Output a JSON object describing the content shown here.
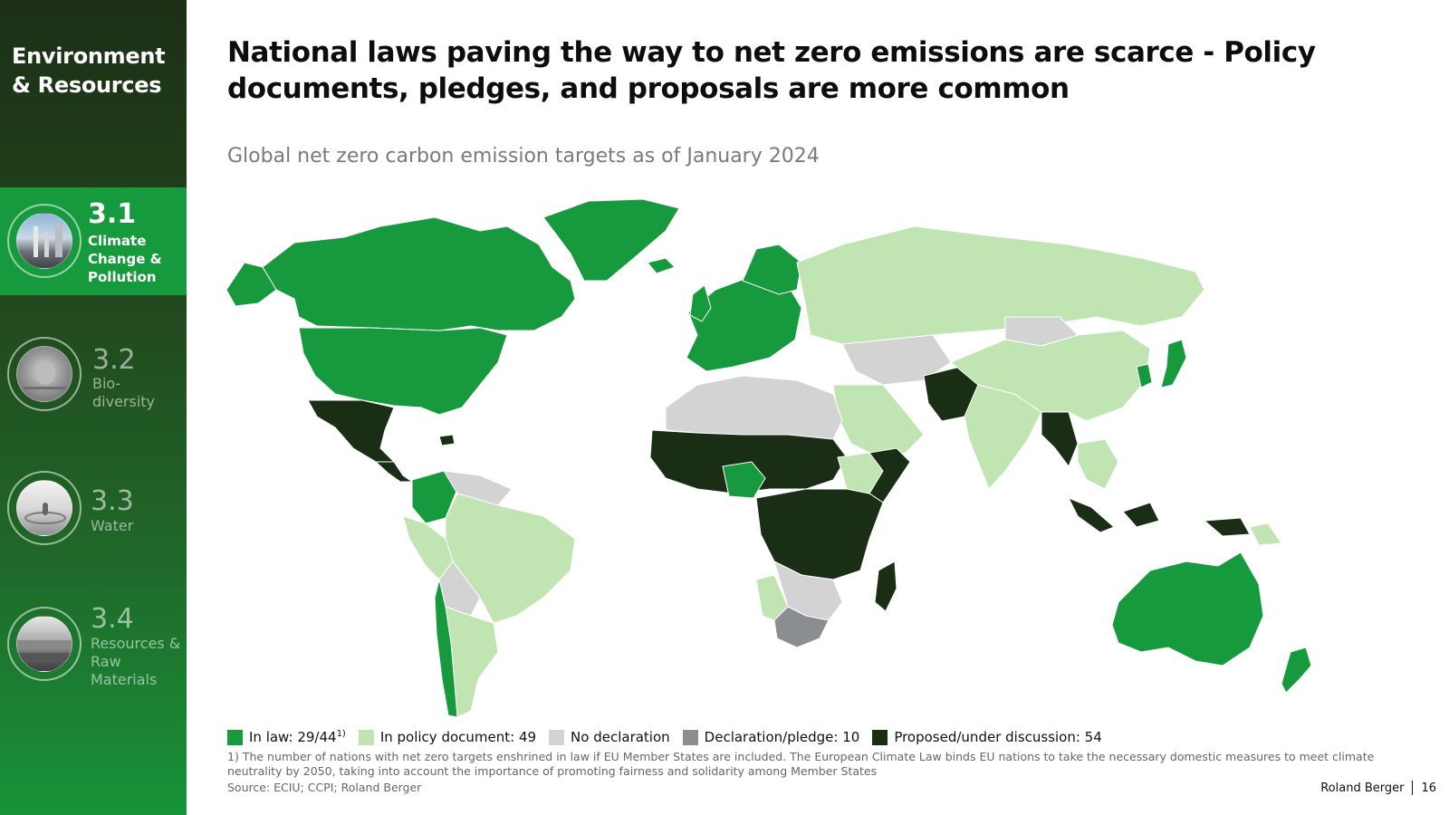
{
  "sidebar": {
    "section_title": "Environment & Resources",
    "items": [
      {
        "number": "3.1",
        "label": "Climate Change & Pollution",
        "active": true
      },
      {
        "number": "3.2",
        "label": "Bio-diversity",
        "active": false
      },
      {
        "number": "3.3",
        "label": "Water",
        "active": false
      },
      {
        "number": "3.4",
        "label": "Resources & Raw Materials",
        "active": false
      }
    ]
  },
  "main": {
    "title": "National laws paving the way to net zero emissions are scarce - Policy documents, pledges, and proposals are more common",
    "subtitle": "Global net zero carbon emission targets as of January 2024"
  },
  "legend": [
    {
      "label": "In law: 29/44",
      "sup": "1)",
      "color": "#179a3d"
    },
    {
      "label": "In policy document: 49",
      "sup": "",
      "color": "#c1e4b3"
    },
    {
      "label": "No declaration",
      "sup": "",
      "color": "#d3d3d3"
    },
    {
      "label": "Declaration/pledge: 10",
      "sup": "",
      "color": "#8a8d91"
    },
    {
      "label": "Proposed/under discussion: 54",
      "sup": "",
      "color": "#1a2e16"
    }
  ],
  "footnote": "1) The number of nations with net zero targets enshrined in law if EU Member States are included. The European Climate Law binds EU nations to take the necessary domestic measures to meet climate neutrality by 2050, taking into account the importance of promoting fairness and solidarity among Member States",
  "source": "Source: ECIU; CCPI; Roland Berger",
  "brand": {
    "name": "Roland Berger",
    "page": "16"
  }
}
